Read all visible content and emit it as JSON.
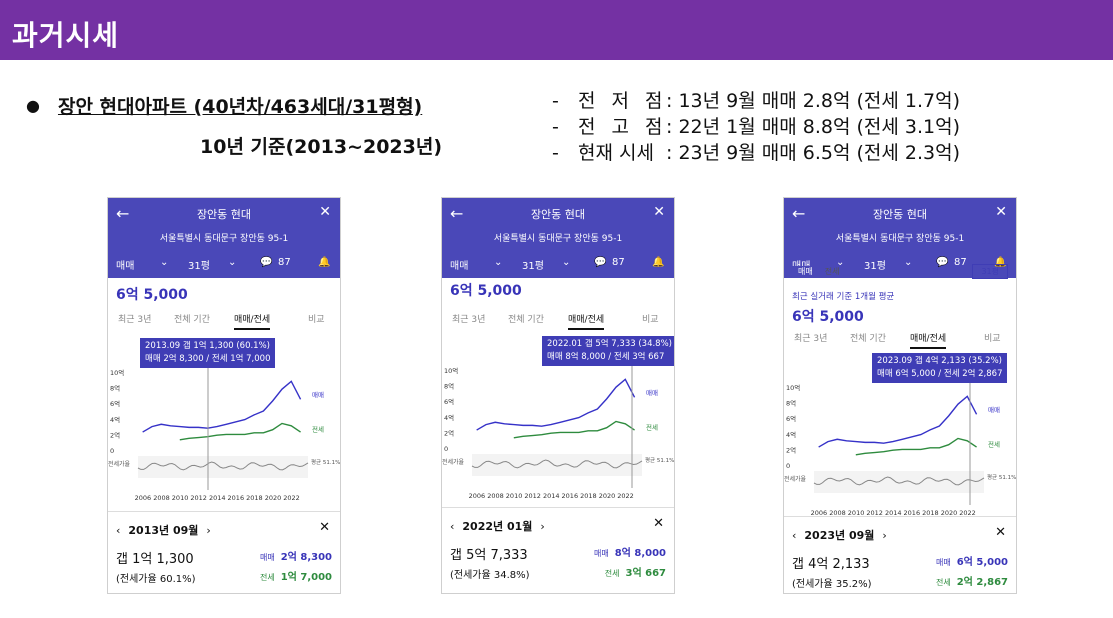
{
  "slide": {
    "title": "과거시세",
    "bullet": "장안 현대아파트 (40년차/463세대/31평형)",
    "subtitle": "10년 기준(2013~2023년)",
    "notes": [
      {
        "dash": "-",
        "label": "전 저 점",
        "value": ": 13년 9월 매매 2.8억 (전세 1.7억)"
      },
      {
        "dash": "-",
        "label": "전 고 점",
        "value": ": 22년 1월 매매 8.8억 (전세 3.1억)"
      },
      {
        "dash": "-",
        "label": "현재 시세",
        "value": ": 23년 9월 매매 6.5억 (전세 2.3억)"
      }
    ]
  },
  "app": {
    "title": "장안동 현대",
    "address": "서울특별시 동대문구 장안동 95-1",
    "deal_type": "매매",
    "size": "31평",
    "comments": "87",
    "current_price": "6억 5,000",
    "tabs": [
      "최근 3년",
      "전체 기간",
      "매매/전세",
      "비교"
    ],
    "legend_sale": "매매",
    "legend_jeonse": "전세",
    "ratio_label": "전세가율",
    "ratio_avg": "평균\n51.1%",
    "y_ticks": [
      "10억",
      "8억",
      "6억",
      "4억",
      "2억",
      "0"
    ],
    "x_ticks": [
      "2006",
      "2008",
      "2010",
      "2012",
      "2014",
      "2016",
      "2018",
      "2020",
      "2022"
    ],
    "toggle_sale": "매매",
    "toggle_jeonse": "전세",
    "dropdown": "31평",
    "avg_note": "최근 실거래 기준 1개월 평균"
  },
  "panels": [
    {
      "tooltip1": "2013.09  갭 1억 1,300 (60.1%)",
      "tooltip2": "매매 2억 8,300 / 전세 1억 7,000",
      "month": "2013년 09월",
      "gap": "갭 1억 1,300",
      "ratio": "(전세가율 60.1%)",
      "sale_label": "매매",
      "sale": "2억 8,300",
      "jeonse_label": "전세",
      "jeonse": "1억 7,000"
    },
    {
      "tooltip1": "2022.01  갭 5억 7,333 (34.8%)",
      "tooltip2": "매매 8억 8,000 / 전세 3억 667",
      "month": "2022년 01월",
      "gap": "갭 5억 7,333",
      "ratio": "(전세가율 34.8%)",
      "sale_label": "매매",
      "sale": "8억 8,000",
      "jeonse_label": "전세",
      "jeonse": "3억 667"
    },
    {
      "tooltip1": "2023.09  갭 4억 2,133 (35.2%)",
      "tooltip2": "매매 6억 5,000 / 전세 2억 2,867",
      "month": "2023년 09월",
      "gap": "갭 4억 2,133",
      "ratio": "(전세가율 35.2%)",
      "sale_label": "매매",
      "sale": "6억 5,000",
      "jeonse_label": "전세",
      "jeonse": "2억 2,867"
    }
  ],
  "chart_data": {
    "type": "line",
    "x": [
      2006,
      2007,
      2008,
      2009,
      2010,
      2011,
      2012,
      2013,
      2014,
      2015,
      2016,
      2017,
      2018,
      2019,
      2020,
      2021,
      2022,
      2023
    ],
    "series": [
      {
        "name": "매매",
        "values": [
          2.3,
          3.0,
          3.3,
          3.1,
          3.0,
          2.9,
          2.9,
          2.8,
          3.0,
          3.3,
          3.6,
          3.9,
          4.5,
          5.0,
          6.3,
          7.8,
          8.8,
          6.5
        ]
      },
      {
        "name": "전세",
        "values": [
          null,
          null,
          null,
          null,
          1.3,
          1.5,
          1.6,
          1.7,
          1.9,
          2.0,
          2.0,
          2.0,
          2.2,
          2.2,
          2.6,
          3.4,
          3.1,
          2.3
        ]
      }
    ],
    "ylim": [
      0,
      10
    ],
    "colors": {
      "sale": "#3632c8",
      "jeonse": "#2e8b3e",
      "ratio": "#888888"
    }
  }
}
